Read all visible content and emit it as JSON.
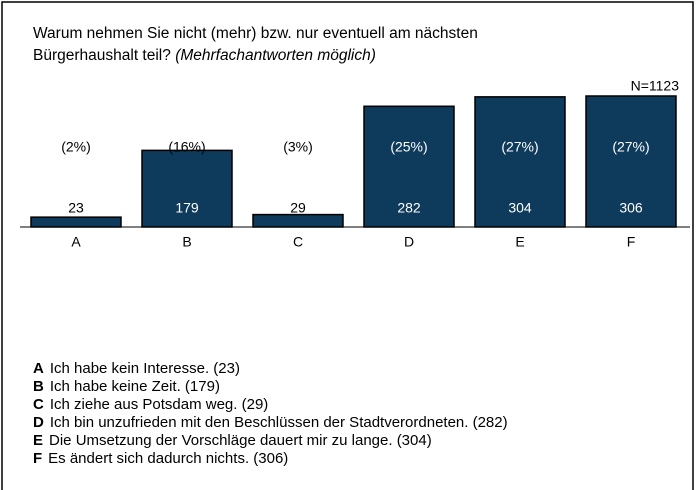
{
  "chart_data": {
    "type": "bar",
    "title": "Warum nehmen Sie nicht (mehr) bzw. nur eventuell am nächsten",
    "title_line2": "Bürgerhaushalt teil?",
    "subtitle": "(Mehrfachantworten möglich)",
    "annotation": "N=1123",
    "categories": [
      "A",
      "B",
      "C",
      "D",
      "E",
      "F"
    ],
    "values": [
      23,
      179,
      29,
      282,
      304,
      306
    ],
    "percent_labels": [
      "(2%)",
      "(16%)",
      "(3%)",
      "(25%)",
      "(27%)",
      "(27%)"
    ],
    "color": "#0e3a5c",
    "legend": [
      {
        "key": "A",
        "text": "Ich habe kein Interesse. (23)"
      },
      {
        "key": "B",
        "text": "Ich habe keine Zeit. (179)"
      },
      {
        "key": "C",
        "text": "Ich ziehe aus Potsdam weg. (29)"
      },
      {
        "key": "D",
        "text": "Ich bin unzufrieden mit den Beschlüssen der Stadtverordneten. (282)"
      },
      {
        "key": "E",
        "text": "Die Umsetzung der Vorschläge  dauert mir zu lange. (304)"
      },
      {
        "key": "F",
        "text": "Es ändert sich dadurch nichts. (306)"
      }
    ]
  }
}
